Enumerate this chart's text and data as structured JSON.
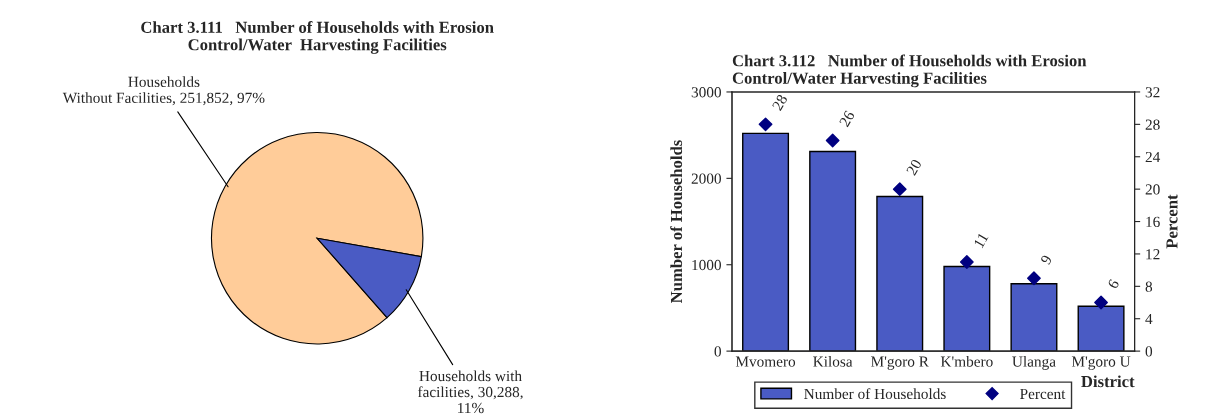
{
  "chart_data": [
    {
      "type": "pie",
      "title": "Chart 3.111   Number of Households with Erosion\nControl/Water  Harvesting Facilities",
      "categories": [
        "Households\nWithout Facilities",
        "Households with\nfacilities"
      ],
      "values": [
        251852,
        30288
      ],
      "value_labels": [
        "251,852, 97%",
        "30,288,\n11%"
      ],
      "colors": [
        "#ffcc99",
        "#4a5bc4"
      ]
    },
    {
      "type": "bar",
      "title": "Chart 3.112   Number of Households with Erosion\nControl/Water Harvesting Facilities",
      "categories": [
        "Mvomero",
        "Kilosa",
        "M'goro R",
        "K'mbero",
        "Ulanga",
        "M'goro U"
      ],
      "xlabel": "District",
      "ylabel": "Number of Households",
      "y2label": "Percent",
      "ylim": [
        0,
        3000
      ],
      "yticks": [
        0,
        1000,
        2000,
        3000
      ],
      "y2lim": [
        0,
        32
      ],
      "y2ticks": [
        0,
        4,
        8,
        12,
        16,
        20,
        24,
        28,
        32
      ],
      "legend": "bottom",
      "series": [
        {
          "name": "Number of Households",
          "type": "bar",
          "color": "#4a5bc4",
          "values": [
            2520,
            2310,
            1790,
            980,
            780,
            520
          ]
        },
        {
          "name": "Percent",
          "type": "scatter",
          "axis": "y2",
          "color": "#000080",
          "marker": "diamond",
          "values": [
            28,
            26,
            20,
            11,
            9,
            6
          ],
          "data_labels": true
        }
      ]
    }
  ]
}
